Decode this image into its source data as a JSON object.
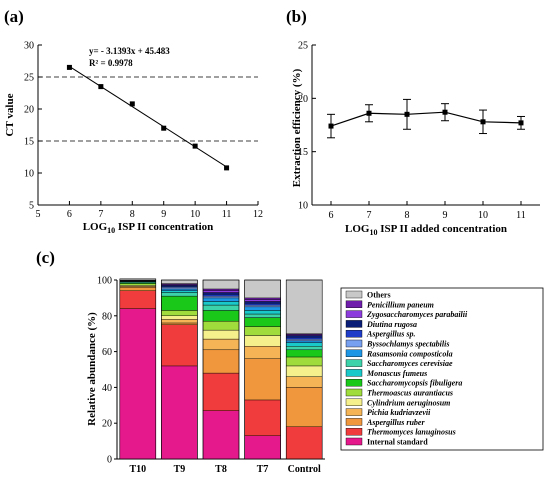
{
  "panel_labels": {
    "a": "(a)",
    "b": "(b)",
    "c": "(c)"
  },
  "chart_data": [
    {
      "type": "line",
      "panel": "a",
      "xlabel": "LOG10 ISP II concentration",
      "xlabel_main": "LOG",
      "xlabel_sub": "10",
      "xlabel_rest": " ISP II concentration",
      "ylabel": "CT value",
      "xlim": [
        5,
        12
      ],
      "ylim": [
        5,
        30
      ],
      "x_ticks": [
        5,
        6,
        7,
        8,
        9,
        10,
        11,
        12
      ],
      "y_ticks": [
        5,
        10,
        15,
        20,
        25,
        30
      ],
      "x": [
        6,
        7,
        8,
        9,
        10,
        11
      ],
      "y": [
        26.5,
        23.5,
        20.8,
        17.0,
        14.2,
        10.8
      ],
      "reference_lines_y": [
        25,
        15
      ],
      "fit": {
        "slope": -3.1393,
        "intercept": 45.483
      },
      "equation": "y= - 3.1393x + 45.483",
      "r2": "R² = 0.9978"
    },
    {
      "type": "line",
      "panel": "b",
      "xlabel": "LOG10 ISP II added concentration",
      "xlabel_main": "LOG",
      "xlabel_sub": "10",
      "xlabel_rest": " ISP II added concentration",
      "ylabel": "Extraction efficiency (%)",
      "xlim": [
        5.5,
        11.5
      ],
      "ylim": [
        10,
        25
      ],
      "x_ticks": [
        6,
        7,
        8,
        9,
        10,
        11
      ],
      "y_ticks": [
        10,
        15,
        20,
        25
      ],
      "x": [
        6,
        7,
        8,
        9,
        10,
        11
      ],
      "y": [
        17.4,
        18.6,
        18.5,
        18.7,
        17.8,
        17.7
      ],
      "error": [
        1.1,
        0.8,
        1.4,
        0.8,
        1.1,
        0.6
      ]
    },
    {
      "type": "bar",
      "stacked": true,
      "panel": "c",
      "ylabel": "Relative abundance (%)",
      "ylim": [
        0,
        100
      ],
      "y_ticks": [
        0,
        20,
        40,
        60,
        80,
        100
      ],
      "categories": [
        "T10",
        "T9",
        "T8",
        "T7",
        "Control"
      ],
      "legend_position": "right",
      "series": [
        {
          "name": "Internal standard",
          "color": "#e6198c",
          "values": [
            84,
            52,
            27,
            13,
            0
          ]
        },
        {
          "name": "Thermomyces lanuginosus",
          "color": "#f03c3c",
          "values": [
            10,
            23,
            21,
            20,
            18
          ]
        },
        {
          "name": "Aspergillus ruber",
          "color": "#f0963c",
          "values": [
            2,
            1,
            13,
            23,
            22
          ]
        },
        {
          "name": "Pichia kudriavzevii",
          "color": "#f5b455",
          "values": [
            0.5,
            2,
            6,
            7,
            6
          ]
        },
        {
          "name": "Cylindrium aeruginosum",
          "color": "#f5f08c",
          "values": [
            0.5,
            2,
            5,
            6,
            6
          ]
        },
        {
          "name": "Thermoascus aurantiacus",
          "color": "#a0dc3c",
          "values": [
            1,
            3,
            5,
            5,
            5
          ]
        },
        {
          "name": "Saccharomycopsis fibuligera",
          "color": "#19c819",
          "values": [
            0.5,
            8,
            6,
            5,
            4
          ]
        },
        {
          "name": "Saccharomyces cerevisiae",
          "color": "#3cd2aa",
          "values": [
            0.5,
            2,
            3,
            2,
            2
          ]
        },
        {
          "name": "Monascus fumeus",
          "color": "#19c8c8",
          "values": [
            0.2,
            1,
            2,
            2,
            2
          ]
        },
        {
          "name": "Rasamsonia composticola",
          "color": "#1e96e6",
          "values": [
            0.2,
            1,
            2,
            2,
            1
          ]
        },
        {
          "name": "Byssochlamys spectabilis",
          "color": "#78a0f0",
          "values": [
            0.1,
            1,
            1,
            1,
            1
          ]
        },
        {
          "name": "Aspergillus sp.",
          "color": "#1e3cc8",
          "values": [
            0.1,
            0.5,
            1,
            1,
            1
          ]
        },
        {
          "name": "Diutina rugosa",
          "color": "#0a1e78",
          "values": [
            0.1,
            0.5,
            1,
            1,
            1
          ]
        },
        {
          "name": "Zygosaccharomyces parabailii",
          "color": "#8c3cdc",
          "values": [
            0.1,
            0.5,
            1,
            1,
            0.5
          ]
        },
        {
          "name": "Penicillium paneum",
          "color": "#6e1eaa",
          "values": [
            0.1,
            0.5,
            1,
            1,
            0.5
          ]
        },
        {
          "name": "Others",
          "color": "#c8c8c8",
          "values": [
            0.7,
            2,
            5,
            10,
            30
          ]
        }
      ],
      "legend_order": [
        "Others",
        "Penicillium paneum",
        "Zygosaccharomyces parabailii",
        "Diutina rugosa",
        "Aspergillus sp.",
        "Byssochlamys spectabilis",
        "Rasamsonia composticola",
        "Saccharomyces cerevisiae",
        "Monascus fumeus",
        "Saccharomycopsis fibuligera",
        "Thermoascus aurantiacus",
        "Cylindrium aeruginosum",
        "Pichia kudriavzevii",
        "Aspergillus ruber",
        "Thermomyces lanuginosus",
        "Internal standard"
      ],
      "legend_plain": [
        "Others",
        "Internal standard"
      ]
    }
  ]
}
